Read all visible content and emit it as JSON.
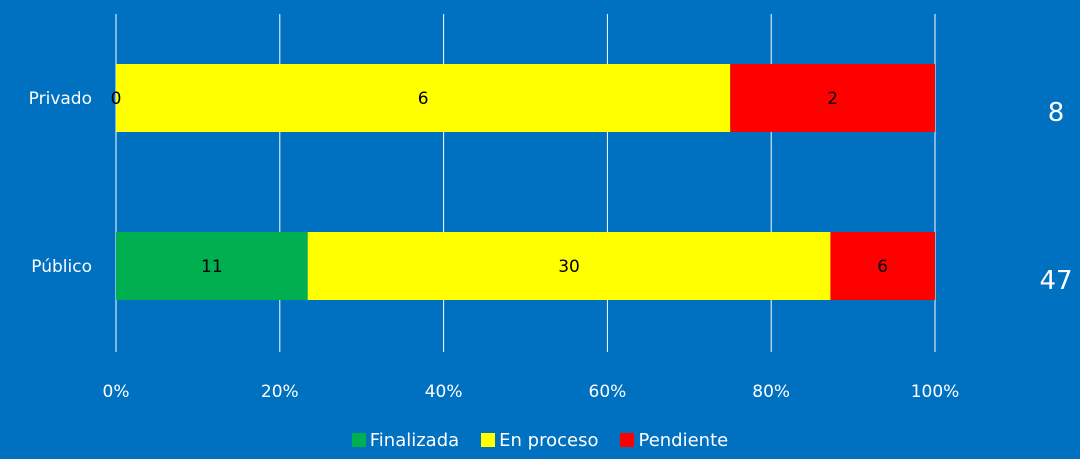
{
  "chart_data": {
    "type": "bar",
    "orientation": "horizontal",
    "stacked": "percent",
    "categories": [
      "Privado",
      "Público"
    ],
    "series": [
      {
        "name": "Finalizada",
        "values": [
          0,
          11
        ],
        "color": "#00B050"
      },
      {
        "name": "En proceso",
        "values": [
          6,
          30
        ],
        "color": "#FFFF00"
      },
      {
        "name": "Pendiente",
        "values": [
          2,
          6
        ],
        "color": "#FF0000"
      }
    ],
    "totals": [
      "8",
      "47"
    ],
    "xticks": [
      "0%",
      "20%",
      "40%",
      "60%",
      "80%",
      "100%"
    ],
    "xlim": [
      0,
      100
    ],
    "grid": true,
    "legend_position": "bottom",
    "colors": {
      "background": "#0070C0",
      "grid": "#FFFFFF"
    }
  }
}
